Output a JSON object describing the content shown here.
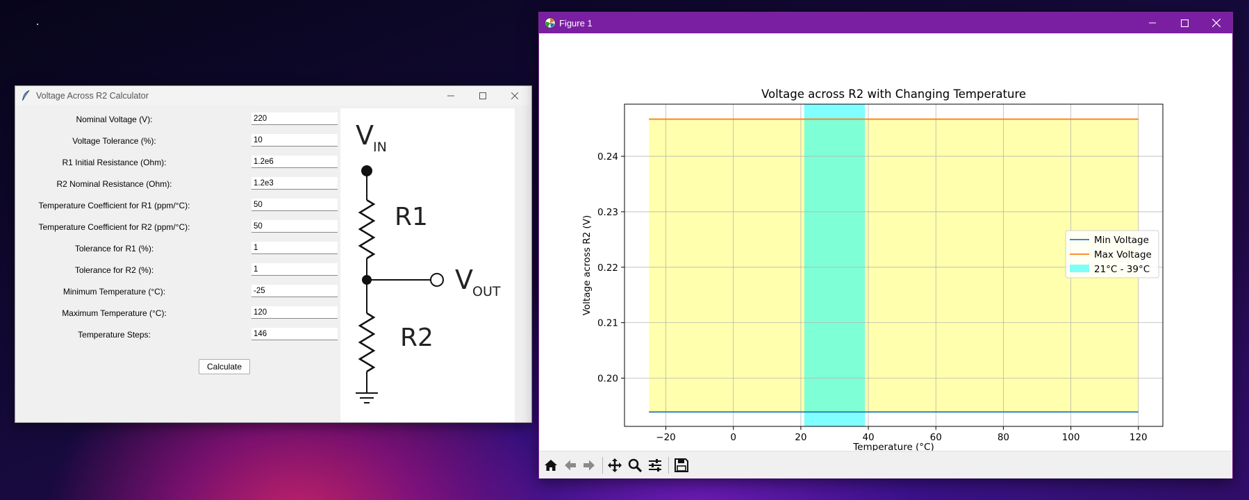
{
  "calculator_window": {
    "title": "Voltage Across R2 Calculator",
    "fields": [
      {
        "label": "Nominal Voltage (V):",
        "value": "220"
      },
      {
        "label": "Voltage Tolerance (%):",
        "value": "10"
      },
      {
        "label": "R1 Initial Resistance (Ohm):",
        "value": "1.2e6"
      },
      {
        "label": "R2 Nominal Resistance (Ohm):",
        "value": "1.2e3"
      },
      {
        "label": "Temperature Coefficient for R1 (ppm/°C):",
        "value": "50"
      },
      {
        "label": "Temperature Coefficient for R2 (ppm/°C):",
        "value": "50"
      },
      {
        "label": "Tolerance for R1 (%):",
        "value": "1"
      },
      {
        "label": "Tolerance for R2 (%):",
        "value": "1"
      },
      {
        "label": "Minimum Temperature (°C):",
        "value": "-25"
      },
      {
        "label": "Maximum Temperature (°C):",
        "value": "120"
      },
      {
        "label": "Temperature Steps:",
        "value": "146"
      }
    ],
    "calculate_label": "Calculate",
    "circuit": {
      "vin": "V",
      "vin_sub": "IN",
      "r1": "R1",
      "r2": "R2",
      "vout": "V",
      "vout_sub": "OUT"
    }
  },
  "figure_window": {
    "title": "Figure 1",
    "toolbar": [
      "home-icon",
      "back-icon",
      "forward-icon",
      "pan-icon",
      "zoom-icon",
      "configure-subplots-icon",
      "save-icon"
    ]
  },
  "chart_data": {
    "type": "line",
    "title": "Voltage across R2 with Changing Temperature",
    "xlabel": "Temperature (°C)",
    "ylabel": "Voltage across R2 (V)",
    "xlim": [
      -32.25,
      127.25
    ],
    "ylim": [
      0.1913,
      0.2494
    ],
    "xticks": [
      -20,
      0,
      20,
      40,
      60,
      80,
      100,
      120
    ],
    "xtick_labels": [
      "−20",
      "0",
      "20",
      "40",
      "60",
      "80",
      "100",
      "120"
    ],
    "yticks": [
      0.2,
      0.21,
      0.22,
      0.23,
      0.24
    ],
    "ytick_labels": [
      "0.20",
      "0.21",
      "0.22",
      "0.23",
      "0.24"
    ],
    "grid": true,
    "legend_position": "center-right",
    "series": [
      {
        "name": "Min Voltage",
        "color": "#1f77b4",
        "x": [
          -25,
          120
        ],
        "y": [
          0.1939,
          0.1939
        ]
      },
      {
        "name": "Max Voltage",
        "color": "#ff7f0e",
        "x": [
          -25,
          120
        ],
        "y": [
          0.2467,
          0.2467
        ]
      }
    ],
    "fill_between": {
      "x": [
        -25,
        120
      ],
      "y1": 0.1939,
      "y2": 0.2467,
      "color": "#ffff99"
    },
    "highlight_span": {
      "name": "21°C - 39°C",
      "x0": 21,
      "x1": 39,
      "color": "#00ffff"
    }
  }
}
